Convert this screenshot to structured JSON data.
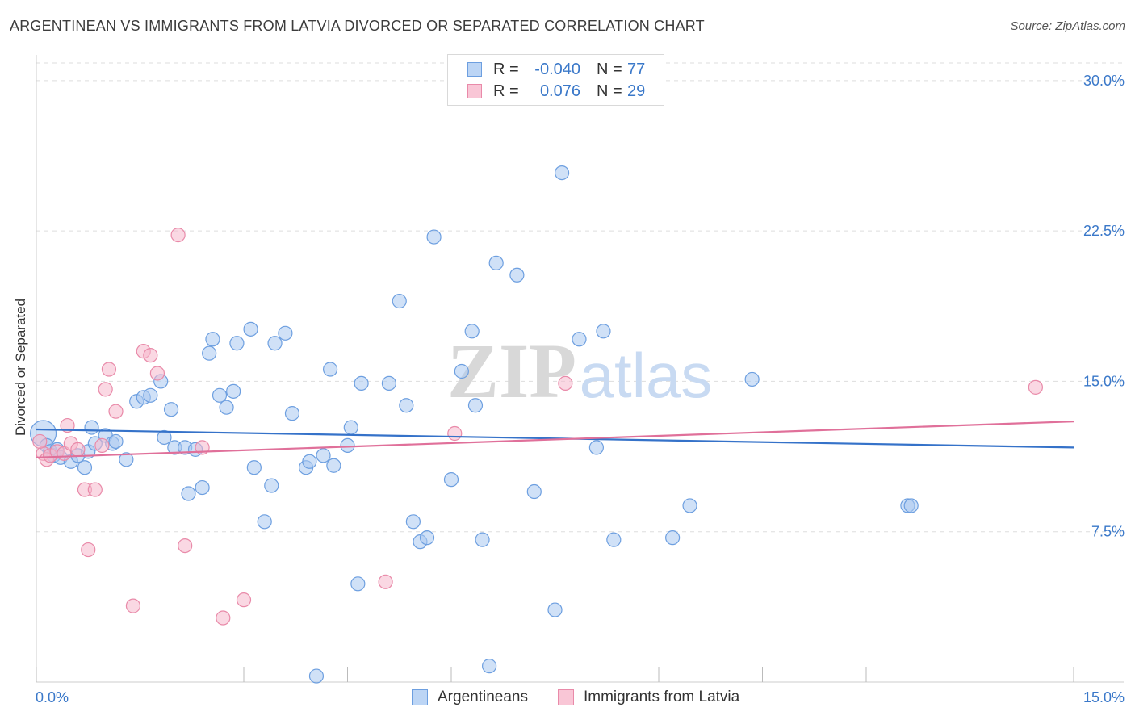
{
  "title": "ARGENTINEAN VS IMMIGRANTS FROM LATVIA DIVORCED OR SEPARATED CORRELATION CHART",
  "source": "Source: ZipAtlas.com",
  "watermark": {
    "zip": "ZIP",
    "atlas": "atlas"
  },
  "legend": {
    "rows": [
      {
        "r_label": "R =",
        "r_value": "-0.040",
        "n_label": "N =",
        "n_value": "77"
      },
      {
        "r_label": "R =",
        "r_value": "0.076",
        "n_label": "N =",
        "n_value": "29"
      }
    ]
  },
  "colors": {
    "blue_fill": "#a9c8f0",
    "blue_stroke": "#6d9fe0",
    "blue_line": "#3572c9",
    "pink_fill": "#f5b8cc",
    "pink_stroke": "#e98aa9",
    "pink_line": "#e0709a",
    "tick_label": "#3a78c9",
    "grid": "#dddddd"
  },
  "chart_data": {
    "type": "scatter",
    "title": "ARGENTINEAN VS IMMIGRANTS FROM LATVIA DIVORCED OR SEPARATED CORRELATION CHART",
    "xlabel": "",
    "ylabel": "Divorced or Separated",
    "xlim": [
      0,
      15
    ],
    "ylim": [
      0,
      31
    ],
    "x_tick_labels": [
      "0.0%",
      "15.0%"
    ],
    "y_ticks": [
      7.5,
      15.0,
      22.5,
      30.0
    ],
    "y_tick_labels": [
      "7.5%",
      "15.0%",
      "22.5%",
      "30.0%"
    ],
    "grid": "horizontal dashed",
    "series": [
      {
        "name": "Argentineans",
        "r": -0.04,
        "n": 77,
        "trend": {
          "x": [
            0,
            15
          ],
          "y": [
            12.6,
            11.7
          ]
        },
        "points": [
          [
            0.1,
            12.4
          ],
          [
            0.15,
            11.8
          ],
          [
            0.2,
            11.5
          ],
          [
            0.25,
            11.3
          ],
          [
            0.3,
            11.6
          ],
          [
            0.35,
            11.2
          ],
          [
            0.5,
            11.0
          ],
          [
            0.6,
            11.3
          ],
          [
            0.7,
            10.7
          ],
          [
            0.75,
            11.5
          ],
          [
            0.8,
            12.7
          ],
          [
            0.85,
            11.9
          ],
          [
            1.0,
            12.3
          ],
          [
            1.1,
            11.9
          ],
          [
            1.15,
            12.0
          ],
          [
            1.3,
            11.1
          ],
          [
            1.45,
            14.0
          ],
          [
            1.55,
            14.2
          ],
          [
            1.65,
            14.3
          ],
          [
            1.8,
            15.0
          ],
          [
            1.85,
            12.2
          ],
          [
            1.95,
            13.6
          ],
          [
            2.0,
            11.7
          ],
          [
            2.15,
            11.7
          ],
          [
            2.2,
            9.4
          ],
          [
            2.3,
            11.6
          ],
          [
            2.4,
            9.7
          ],
          [
            2.5,
            16.4
          ],
          [
            2.55,
            17.1
          ],
          [
            2.65,
            14.3
          ],
          [
            2.75,
            13.7
          ],
          [
            2.85,
            14.5
          ],
          [
            2.9,
            16.9
          ],
          [
            3.1,
            17.6
          ],
          [
            3.15,
            10.7
          ],
          [
            3.3,
            8.0
          ],
          [
            3.4,
            9.8
          ],
          [
            3.45,
            16.9
          ],
          [
            3.6,
            17.4
          ],
          [
            3.7,
            13.4
          ],
          [
            3.9,
            10.7
          ],
          [
            3.95,
            11.0
          ],
          [
            4.05,
            0.3
          ],
          [
            4.15,
            11.3
          ],
          [
            4.25,
            15.6
          ],
          [
            4.3,
            10.8
          ],
          [
            4.5,
            11.8
          ],
          [
            4.55,
            12.7
          ],
          [
            4.65,
            4.9
          ],
          [
            4.7,
            14.9
          ],
          [
            5.1,
            14.9
          ],
          [
            5.25,
            19.0
          ],
          [
            5.35,
            13.8
          ],
          [
            5.45,
            8.0
          ],
          [
            5.55,
            7.0
          ],
          [
            5.65,
            7.2
          ],
          [
            5.75,
            22.2
          ],
          [
            6.0,
            10.1
          ],
          [
            6.15,
            15.5
          ],
          [
            6.3,
            17.5
          ],
          [
            6.35,
            13.8
          ],
          [
            6.45,
            7.1
          ],
          [
            6.55,
            0.8
          ],
          [
            6.65,
            20.9
          ],
          [
            6.95,
            20.3
          ],
          [
            7.2,
            9.5
          ],
          [
            7.5,
            3.6
          ],
          [
            7.6,
            25.4
          ],
          [
            7.85,
            17.1
          ],
          [
            8.1,
            11.7
          ],
          [
            8.2,
            17.5
          ],
          [
            8.35,
            7.1
          ],
          [
            9.2,
            7.2
          ],
          [
            9.45,
            8.8
          ],
          [
            10.35,
            15.1
          ],
          [
            12.6,
            8.8
          ],
          [
            12.65,
            8.8
          ]
        ]
      },
      {
        "name": "Immigrants from Latvia",
        "r": 0.076,
        "n": 29,
        "trend": {
          "x": [
            0,
            15
          ],
          "y": [
            11.2,
            13.0
          ]
        },
        "points": [
          [
            0.1,
            11.4
          ],
          [
            0.15,
            11.1
          ],
          [
            0.2,
            11.3
          ],
          [
            0.3,
            11.5
          ],
          [
            0.4,
            11.4
          ],
          [
            0.45,
            12.8
          ],
          [
            0.5,
            11.9
          ],
          [
            0.6,
            11.6
          ],
          [
            0.7,
            9.6
          ],
          [
            0.75,
            6.6
          ],
          [
            0.85,
            9.6
          ],
          [
            0.95,
            11.8
          ],
          [
            1.0,
            14.6
          ],
          [
            1.05,
            15.6
          ],
          [
            1.15,
            13.5
          ],
          [
            1.4,
            3.8
          ],
          [
            1.55,
            16.5
          ],
          [
            1.65,
            16.3
          ],
          [
            1.75,
            15.4
          ],
          [
            2.05,
            22.3
          ],
          [
            2.15,
            6.8
          ],
          [
            2.4,
            11.7
          ],
          [
            2.7,
            3.2
          ],
          [
            3.0,
            4.1
          ],
          [
            5.05,
            5.0
          ],
          [
            6.05,
            12.4
          ],
          [
            7.65,
            14.9
          ],
          [
            14.45,
            14.7
          ],
          [
            0.05,
            12.0
          ]
        ]
      }
    ]
  }
}
